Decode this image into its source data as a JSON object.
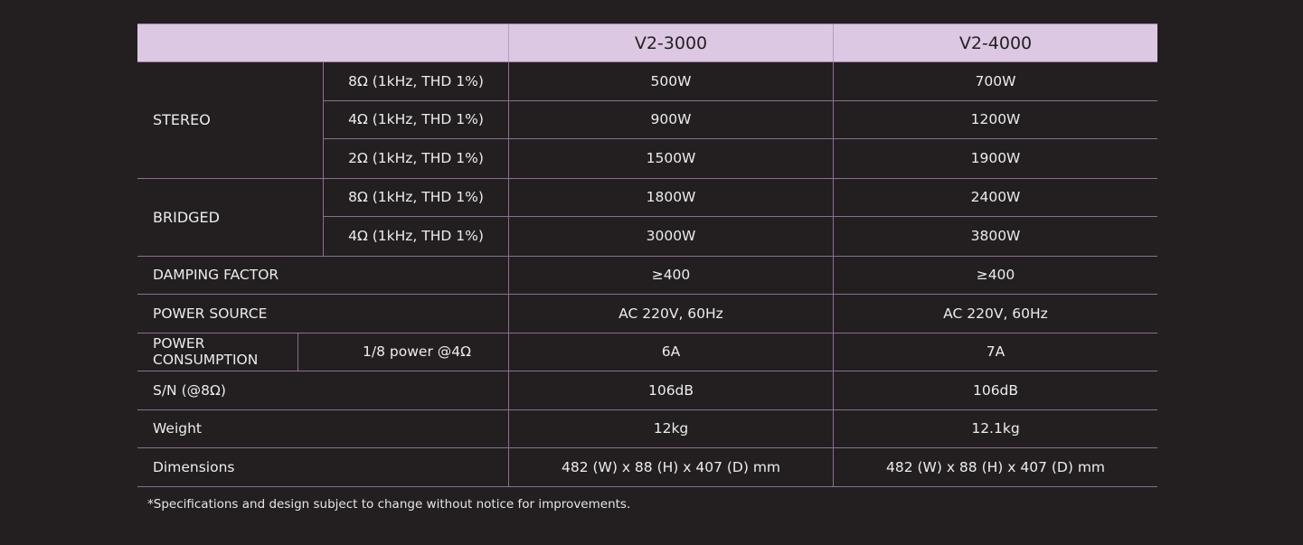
{
  "header": {
    "models": [
      "V2-3000",
      "V2-4000"
    ]
  },
  "stereo": {
    "label": "STEREO",
    "rows": [
      {
        "cond": "8Ω (1kHz, THD 1%)",
        "v1": "500W",
        "v2": "700W"
      },
      {
        "cond": "4Ω (1kHz, THD 1%)",
        "v1": "900W",
        "v2": "1200W"
      },
      {
        "cond": "2Ω (1kHz, THD 1%)",
        "v1": "1500W",
        "v2": "1900W"
      }
    ]
  },
  "bridged": {
    "label": "BRIDGED",
    "rows": [
      {
        "cond": "8Ω (1kHz, THD 1%)",
        "v1": "1800W",
        "v2": "2400W"
      },
      {
        "cond": "4Ω (1kHz, THD 1%)",
        "v1": "3000W",
        "v2": "3800W"
      }
    ]
  },
  "damping": {
    "label": "DAMPING FACTOR",
    "v1": "≥400",
    "v2": "≥400"
  },
  "power_source": {
    "label": "POWER SOURCE",
    "v1": "AC 220V, 60Hz",
    "v2": "AC 220V, 60Hz"
  },
  "power_consumption": {
    "label": "POWER CONSUMPTION",
    "cond": "1/8 power @4Ω",
    "v1": "6A",
    "v2": "7A"
  },
  "sn": {
    "label": "S/N (@8Ω)",
    "v1": "106dB",
    "v2": "106dB"
  },
  "weight": {
    "label": "Weight",
    "v1": "12kg",
    "v2": "12.1kg"
  },
  "dimensions": {
    "label": "Dimensions",
    "v1": "482 (W) x 88 (H) x 407 (D) mm",
    "v2": "482 (W) x 88 (H) x 407 (D) mm"
  },
  "footnote": "*Specifications and design subject to change without notice for improvements."
}
